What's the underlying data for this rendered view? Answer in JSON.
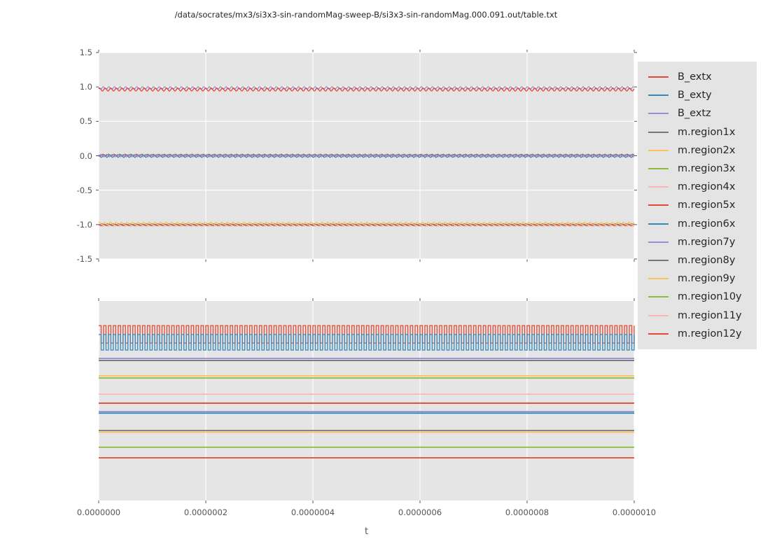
{
  "title": "/data/socrates/mx3/si3x3-sin-randomMag-sweep-B/si3x3-sin-randomMag.000.091.out/table.txt",
  "style": {
    "figure_bg": "#FFFFFF",
    "plot_bg": "#E5E5E5",
    "grid_color": "#FFFFFF",
    "tick_color": "#555555",
    "tick_label_color": "#555555",
    "title_color": "#262626",
    "legend_bg": "#E4E4E4",
    "palette": {
      "red": "#E24A33",
      "blue": "#348ABD",
      "purple": "#988ED5",
      "gray": "#777777",
      "orange": "#FBC15E",
      "green": "#8EBA42",
      "pink": "#FFB5B8"
    }
  },
  "legend": {
    "position": "right",
    "entries": [
      {
        "label": "B_extx",
        "color": "#E24A33"
      },
      {
        "label": "B_exty",
        "color": "#348ABD"
      },
      {
        "label": "B_extz",
        "color": "#988ED5"
      },
      {
        "label": "m.region1x",
        "color": "#777777"
      },
      {
        "label": "m.region2x",
        "color": "#FBC15E"
      },
      {
        "label": "m.region3x",
        "color": "#8EBA42"
      },
      {
        "label": "m.region4x",
        "color": "#FFB5B8"
      },
      {
        "label": "m.region5x",
        "color": "#E24A33"
      },
      {
        "label": "m.region6x",
        "color": "#348ABD"
      },
      {
        "label": "m.region7y",
        "color": "#988ED5"
      },
      {
        "label": "m.region8y",
        "color": "#777777"
      },
      {
        "label": "m.region9y",
        "color": "#FBC15E"
      },
      {
        "label": "m.region10y",
        "color": "#8EBA42"
      },
      {
        "label": "m.region11y",
        "color": "#FFB5B8"
      },
      {
        "label": "m.region12y",
        "color": "#E24A33"
      }
    ]
  },
  "chart_data": {
    "type": "line",
    "title": "/data/socrates/mx3/si3x3-sin-randomMag-sweep-B/si3x3-sin-randomMag.000.091.out/table.txt",
    "xlabel": "t",
    "x_range": [
      0,
      1e-06
    ],
    "x_tick_labels": [
      "0.0000000",
      "0.0000002",
      "0.0000004",
      "0.0000006",
      "0.0000008",
      "0.0000010"
    ],
    "grid": "on",
    "legend_position": "right",
    "subplots": [
      {
        "id": "top",
        "ylim": [
          -1.5,
          1.5
        ],
        "y_tick_labels": [
          "1.5",
          "1.0",
          "0.5",
          "0.0",
          "-0.5",
          "-1.0",
          "-1.5"
        ],
        "description": "Rapidly oscillating nearly-constant line bundles at ~0.97 (red/purple), ~0.0 (blue/purple/red) and ~-1.0 (orange/gray/red/pink); values read from y axis.",
        "series": [
          {
            "color": "#FFB5B8",
            "kind": "sine",
            "mean": -1.015,
            "amp": 0.012,
            "cycles": 96,
            "phase": 0.0
          },
          {
            "color": "#E24A33",
            "kind": "sine",
            "mean": -1.005,
            "amp": 0.012,
            "cycles": 96,
            "phase": 2.1
          },
          {
            "color": "#777777",
            "kind": "sine",
            "mean": -0.995,
            "amp": 0.008,
            "cycles": 96,
            "phase": 4.2
          },
          {
            "color": "#FBC15E",
            "kind": "sine",
            "mean": -0.982,
            "amp": 0.018,
            "cycles": 96,
            "phase": 1.0
          },
          {
            "color": "#E24A33",
            "kind": "sine",
            "mean": 0.008,
            "amp": 0.015,
            "cycles": 96,
            "phase": 3.1
          },
          {
            "color": "#988ED5",
            "kind": "sine",
            "mean": 0.002,
            "amp": 0.018,
            "cycles": 96,
            "phase": 5.2
          },
          {
            "color": "#348ABD",
            "kind": "sine",
            "mean": -0.006,
            "amp": 0.018,
            "cycles": 96,
            "phase": 1.7
          },
          {
            "color": "#988ED5",
            "kind": "sine",
            "mean": 0.985,
            "amp": 0.018,
            "cycles": 96,
            "phase": 2.6
          },
          {
            "color": "#E24A33",
            "kind": "sine",
            "mean": 0.962,
            "amp": 0.022,
            "cycles": 96,
            "phase": 0.5
          }
        ]
      },
      {
        "id": "bottom",
        "y_tick_labels": [],
        "description": "Unlabeled y axis; flat lines at fixed heights (y_frac = fraction from top of axes) plus two rapid square-wave traces near the top.",
        "series": [
          {
            "color": "#777777",
            "kind": "flat",
            "y_frac": 0.298
          },
          {
            "color": "#988ED5",
            "kind": "flat",
            "y_frac": 0.288
          },
          {
            "color": "#8EBA42",
            "kind": "flat",
            "y_frac": 0.386
          },
          {
            "color": "#FBC15E",
            "kind": "flat",
            "y_frac": 0.375
          },
          {
            "color": "#FFB5B8",
            "kind": "flat",
            "y_frac": 0.467
          },
          {
            "color": "#E24A33",
            "kind": "flat",
            "y_frac": 0.512
          },
          {
            "color": "#988ED5",
            "kind": "flat",
            "y_frac": 0.554
          },
          {
            "color": "#348ABD",
            "kind": "flat",
            "y_frac": 0.562
          },
          {
            "color": "#FBC15E",
            "kind": "flat",
            "y_frac": 0.658
          },
          {
            "color": "#777777",
            "kind": "flat",
            "y_frac": 0.649
          },
          {
            "color": "#8EBA42",
            "kind": "flat",
            "y_frac": 0.733
          },
          {
            "color": "#E24A33",
            "kind": "flat",
            "y_frac": 0.786
          },
          {
            "color": "#E24A33",
            "kind": "square",
            "y_frac_high": 0.123,
            "y_frac_low": 0.211,
            "cycles": 110
          },
          {
            "color": "#348ABD",
            "kind": "square",
            "y_frac_high": 0.168,
            "y_frac_low": 0.246,
            "cycles": 110
          }
        ]
      }
    ]
  }
}
